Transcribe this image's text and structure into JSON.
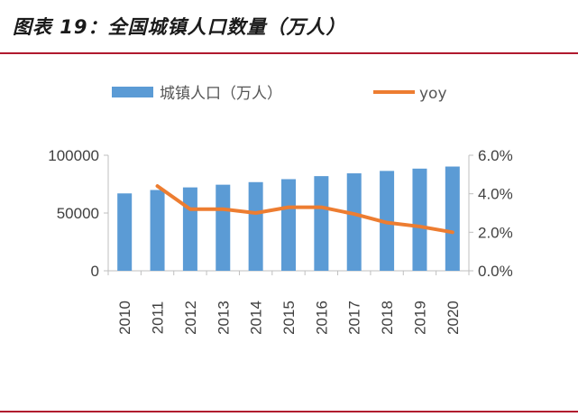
{
  "figure": {
    "title": "图表 19：全国城镇人口数量（万人）",
    "rule_color": "#b01a2e"
  },
  "chart_data": {
    "type": "bar",
    "title": "图表 19：全国城镇人口数量（万人）",
    "categories": [
      "2010",
      "2011",
      "2012",
      "2013",
      "2014",
      "2015",
      "2016",
      "2017",
      "2018",
      "2019",
      "2020"
    ],
    "series": [
      {
        "name": "城镇人口（万人）",
        "kind": "bar",
        "axis": "left",
        "color": "#5b9bd5",
        "values": [
          66978,
          69927,
          72175,
          74502,
          76738,
          79302,
          81924,
          84343,
          86433,
          88426,
          90220
        ]
      },
      {
        "name": "yoy",
        "kind": "line",
        "axis": "right",
        "color": "#ed7d31",
        "values": [
          null,
          4.4,
          3.2,
          3.2,
          3.0,
          3.3,
          3.3,
          2.95,
          2.5,
          2.3,
          2.0
        ]
      }
    ],
    "y_left": {
      "min": 0,
      "max": 100000,
      "ticks": [
        0,
        50000,
        100000
      ],
      "tick_labels": [
        "0",
        "50000",
        "100000"
      ]
    },
    "y_right": {
      "min": 0,
      "max": 6,
      "ticks": [
        0,
        2,
        4,
        6
      ],
      "tick_labels": [
        "0.0%",
        "2.0%",
        "4.0%",
        "6.0%"
      ]
    },
    "legend": {
      "position": "top",
      "items": [
        "城镇人口（万人）",
        "yoy"
      ]
    },
    "grid": false
  }
}
